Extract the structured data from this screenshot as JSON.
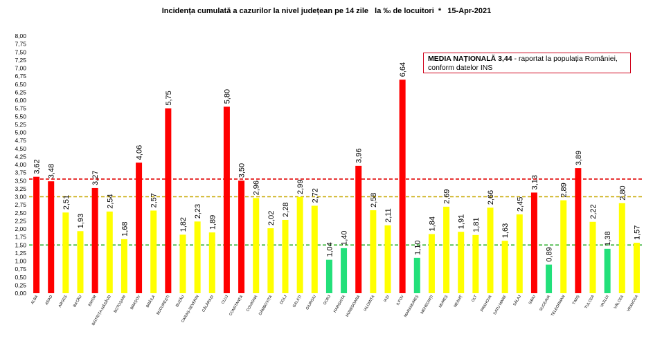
{
  "chart_data": {
    "type": "bar",
    "title": "Incidența cumulată a cazurilor la nivel județean pe 14 zile   la ‰ de locuitori  *   15-Apr-2021",
    "categories": [
      "ALBA",
      "ARAD",
      "ARGEȘ",
      "BACĂU",
      "BIHOR",
      "BISTRIȚA-NĂSĂUD",
      "BOTOȘANI",
      "BRAȘOV",
      "BRĂILA",
      "BUCUREȘTI",
      "BUZĂU",
      "CARAȘ-SEVERIN",
      "CĂLĂRAȘI",
      "CLUJ",
      "CONSTANȚA",
      "COVASNA",
      "DÂMBOVIȚA",
      "DOLJ",
      "GALAȚI",
      "GIURGIU",
      "GORJ",
      "HARGHITA",
      "HUNEDOARA",
      "IALOMIȚA",
      "IAȘI",
      "ILFOV",
      "MARAMUREȘ",
      "MEHEDINȚI",
      "MUREȘ",
      "NEAMȚ",
      "OLT",
      "PRAHOVA",
      "SATU MARE",
      "SĂLAJ",
      "SIBIU",
      "SUCEAVA",
      "TELEORMAN",
      "TIMIȘ",
      "TULCEA",
      "VASLUI",
      "VÂLCEA",
      "VRANCEA"
    ],
    "values": [
      3.62,
      3.48,
      2.51,
      1.93,
      3.27,
      2.54,
      1.68,
      4.06,
      2.57,
      5.75,
      1.82,
      2.23,
      1.89,
      5.8,
      3.5,
      2.96,
      2.02,
      2.28,
      2.99,
      2.72,
      1.04,
      1.4,
      3.96,
      2.58,
      2.11,
      6.64,
      1.1,
      1.84,
      2.69,
      1.91,
      1.81,
      2.66,
      1.63,
      2.45,
      3.13,
      0.89,
      2.89,
      3.89,
      2.22,
      1.38,
      2.8,
      1.57
    ],
    "value_labels": [
      "3,62",
      "3,48",
      "2,51",
      "1,93",
      "3,27",
      "2,54",
      "1,68",
      "4,06",
      "2,57",
      "5,75",
      "1,82",
      "2,23",
      "1,89",
      "5,80",
      "3,50",
      "2,96",
      "2,02",
      "2,28",
      "2,99",
      "2,72",
      "1,04",
      "1,40",
      "3,96",
      "2,58",
      "2,11",
      "6,64",
      "1,10",
      "1,84",
      "2,69",
      "1,91",
      "1,81",
      "2,66",
      "1,63",
      "2,45",
      "3,13",
      "0,89",
      "2,89",
      "3,89",
      "2,22",
      "1,38",
      "2,80",
      "1,57"
    ],
    "ylim": [
      0,
      8
    ],
    "y_ticks": [
      "0,00",
      "0,25",
      "0,50",
      "0,75",
      "1,00",
      "1,25",
      "1,50",
      "1,75",
      "2,00",
      "2,25",
      "2,50",
      "2,75",
      "3,00",
      "3,25",
      "3,50",
      "3,75",
      "4,00",
      "4,25",
      "4,50",
      "4,75",
      "5,00",
      "5,25",
      "5,50",
      "5,75",
      "6,00",
      "6,25",
      "6,50",
      "6,75",
      "7,00",
      "7,25",
      "7,50",
      "7,75",
      "8,00"
    ],
    "thresholds": [
      {
        "value": 3.55,
        "color": "#e00000"
      },
      {
        "value": 3.0,
        "color": "#c8a800"
      },
      {
        "value": 1.5,
        "color": "#1aa81a"
      }
    ],
    "colors": {
      "high": "#ff0000",
      "mid": "#ffff00",
      "low": "#22e07a"
    },
    "grid": false,
    "legend": "none"
  },
  "annotation": {
    "bold": "MEDIA NAȚIONALĂ 3,44",
    "rest": " - raportat la populația României, conform datelor INS"
  }
}
